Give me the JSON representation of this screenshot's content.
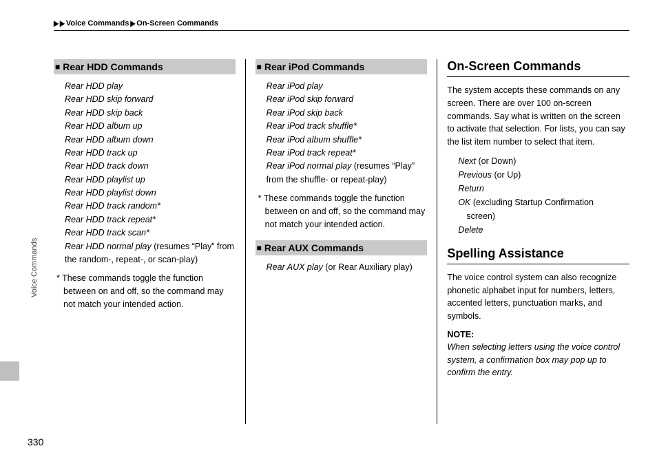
{
  "breadcrumb": {
    "a": "Voice Commands",
    "b": "On-Screen Commands"
  },
  "sideLabel": "Voice Commands",
  "pageNumber": "330",
  "col1": {
    "header": "Rear HDD Commands",
    "items": [
      {
        "cmd": "Rear HDD play"
      },
      {
        "cmd": "Rear HDD skip forward"
      },
      {
        "cmd": "Rear HDD skip back"
      },
      {
        "cmd": "Rear HDD album up"
      },
      {
        "cmd": "Rear HDD album down"
      },
      {
        "cmd": "Rear HDD track up"
      },
      {
        "cmd": "Rear HDD track down"
      },
      {
        "cmd": "Rear HDD playlist up"
      },
      {
        "cmd": "Rear HDD playlist down"
      },
      {
        "cmd": "Rear HDD track random*"
      },
      {
        "cmd": "Rear HDD track repeat*"
      },
      {
        "cmd": "Rear HDD track scan*"
      },
      {
        "cmd": "Rear HDD normal play",
        "note": " (resumes “Play” from the random-, repeat-, or scan-play)"
      }
    ],
    "footnote": "* These commands toggle the function between on and off, so the command may not match your intended action."
  },
  "col2a": {
    "header": "Rear iPod Commands",
    "items": [
      {
        "cmd": "Rear iPod play"
      },
      {
        "cmd": "Rear iPod skip forward"
      },
      {
        "cmd": "Rear iPod skip back"
      },
      {
        "cmd": "Rear iPod track shuffle*"
      },
      {
        "cmd": "Rear iPod album shuffle*"
      },
      {
        "cmd": "Rear iPod track repeat*"
      },
      {
        "cmd": "Rear iPod normal play",
        "note": " (resumes “Play” from the shuffle- or repeat-play)"
      }
    ],
    "footnote": "* These commands toggle the function between on and off, so the command may not match your intended action."
  },
  "col2b": {
    "header": "Rear AUX Commands",
    "items": [
      {
        "cmd": "Rear AUX play",
        "note": " (or Rear Auxiliary play)"
      }
    ]
  },
  "col3a": {
    "title": "On-Screen Commands",
    "body": "The system accepts these commands on any screen. There are over 100 on-screen commands. Say what is written on the screen to activate that selection. For lists, you can say the list item number to select that item.",
    "list": [
      {
        "it": "Next",
        "rest": " (or Down)"
      },
      {
        "it": "Previous",
        "rest": " (or Up)"
      },
      {
        "it": "Return",
        "rest": ""
      },
      {
        "it": "OK",
        "rest": " (excluding Startup Confirmation",
        "sub": "screen)"
      },
      {
        "it": "Delete",
        "rest": ""
      }
    ]
  },
  "col3b": {
    "title": "Spelling Assistance",
    "body": "The voice control system can also recognize phonetic alphabet input for numbers, letters, accented letters, punctuation marks, and symbols.",
    "noteLabel": "NOTE:",
    "noteBody": "When selecting letters using the voice control system, a confirmation box may pop up to confirm the entry."
  }
}
